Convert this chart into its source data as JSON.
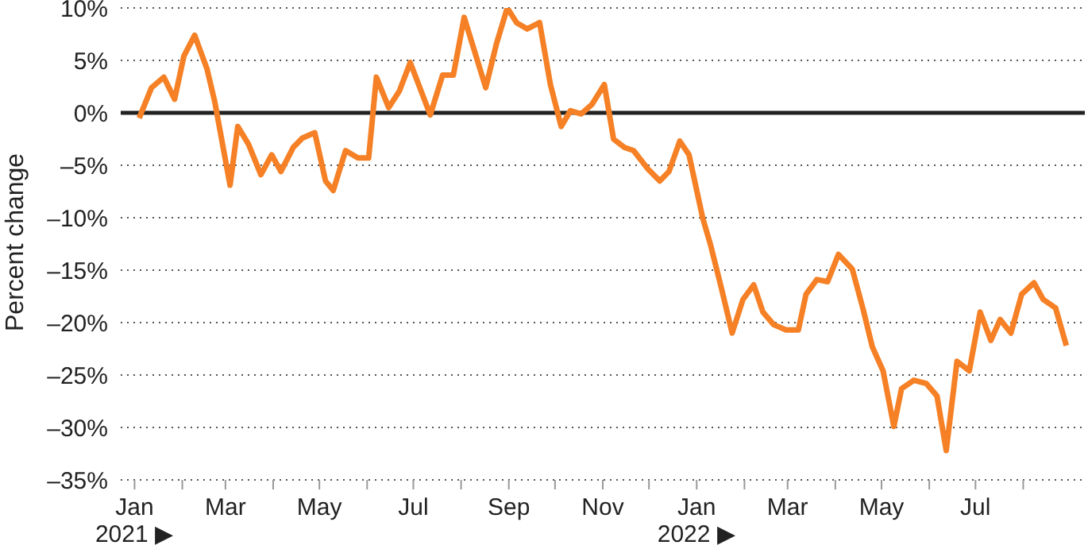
{
  "chart_data": {
    "type": "line",
    "ylabel": "Percent change",
    "x": [
      "2021-01-04",
      "2021-01-12",
      "2021-01-20",
      "2021-01-27",
      "2021-02-02",
      "2021-02-09",
      "2021-02-17",
      "2021-02-22",
      "2021-03-04",
      "2021-03-09",
      "2021-03-16",
      "2021-03-24",
      "2021-03-31",
      "2021-04-06",
      "2021-04-14",
      "2021-04-20",
      "2021-04-28",
      "2021-05-05",
      "2021-05-10",
      "2021-05-18",
      "2021-05-26",
      "2021-06-02",
      "2021-06-07",
      "2021-06-15",
      "2021-06-22",
      "2021-06-29",
      "2021-07-12",
      "2021-07-20",
      "2021-07-27",
      "2021-08-03",
      "2021-08-17",
      "2021-08-24",
      "2021-08-31",
      "2021-09-06",
      "2021-09-13",
      "2021-09-21",
      "2021-09-28",
      "2021-10-05",
      "2021-10-11",
      "2021-10-18",
      "2021-10-25",
      "2021-11-02",
      "2021-11-08",
      "2021-11-15",
      "2021-11-21",
      "2021-11-30",
      "2021-12-08",
      "2021-12-14",
      "2021-12-21",
      "2021-12-27",
      "2022-01-05",
      "2022-01-10",
      "2022-01-17",
      "2022-01-24",
      "2022-01-31",
      "2022-02-07",
      "2022-02-13",
      "2022-02-20",
      "2022-02-28",
      "2022-03-08",
      "2022-03-13",
      "2022-03-20",
      "2022-03-27",
      "2022-04-03",
      "2022-04-12",
      "2022-04-19",
      "2022-04-25",
      "2022-05-02",
      "2022-05-09",
      "2022-05-14",
      "2022-05-22",
      "2022-05-30",
      "2022-06-06",
      "2022-06-12",
      "2022-06-19",
      "2022-06-27",
      "2022-07-04",
      "2022-07-11",
      "2022-07-17",
      "2022-07-24",
      "2022-07-31",
      "2022-08-08",
      "2022-08-14",
      "2022-08-22",
      "2022-08-29"
    ],
    "series": [
      {
        "color": "#f58025",
        "values": [
          -0.5,
          2.4,
          3.4,
          1.3,
          5.4,
          7.4,
          4.2,
          1.1,
          -6.9,
          -1.3,
          -3.0,
          -5.9,
          -4.0,
          -5.6,
          -3.3,
          -2.4,
          -1.9,
          -6.5,
          -7.4,
          -3.6,
          -4.3,
          -4.3,
          3.4,
          0.5,
          2.1,
          4.8,
          -0.2,
          3.6,
          3.6,
          9.1,
          2.4,
          6.6,
          10.0,
          8.6,
          8.0,
          8.6,
          2.7,
          -1.3,
          0.2,
          -0.1,
          0.8,
          2.7,
          -2.5,
          -3.3,
          -3.6,
          -5.3,
          -6.5,
          -5.6,
          -2.7,
          -4.0,
          -10.1,
          -12.6,
          -16.7,
          -21.0,
          -17.8,
          -16.4,
          -19.0,
          -20.2,
          -20.7,
          -20.7,
          -17.3,
          -15.9,
          -16.1,
          -13.5,
          -14.9,
          -18.7,
          -22.3,
          -24.6,
          -29.9,
          -26.3,
          -25.5,
          -25.8,
          -27.0,
          -32.2,
          -23.7,
          -24.6,
          -19.0,
          -21.7,
          -19.7,
          -21.0,
          -17.3,
          -16.2,
          -17.8,
          -18.6,
          -22.2
        ]
      }
    ],
    "xlim": [
      "2020-12-23",
      "2022-09-10"
    ],
    "xticks": [
      {
        "value": "2021-01-01",
        "label": "Jan\n2021 ▶"
      },
      {
        "value": "2021-02-01",
        "label": null
      },
      {
        "value": "2021-03-01",
        "label": "Mar"
      },
      {
        "value": "2021-04-01",
        "label": null
      },
      {
        "value": "2021-05-01",
        "label": "May"
      },
      {
        "value": "2021-06-01",
        "label": null
      },
      {
        "value": "2021-07-01",
        "label": "Jul"
      },
      {
        "value": "2021-08-01",
        "label": null
      },
      {
        "value": "2021-09-01",
        "label": "Sep"
      },
      {
        "value": "2021-10-01",
        "label": null
      },
      {
        "value": "2021-11-01",
        "label": "Nov"
      },
      {
        "value": "2021-12-01",
        "label": null
      },
      {
        "value": "2022-01-01",
        "label": "Jan\n2022 ▶"
      },
      {
        "value": "2022-02-01",
        "label": null
      },
      {
        "value": "2022-03-01",
        "label": "Mar"
      },
      {
        "value": "2022-04-01",
        "label": null
      },
      {
        "value": "2022-05-01",
        "label": "May"
      },
      {
        "value": "2022-06-01",
        "label": null
      },
      {
        "value": "2022-07-01",
        "label": "Jul"
      },
      {
        "value": "2022-08-01",
        "label": null
      }
    ],
    "ylim": [
      -35,
      10
    ],
    "yticks": [
      {
        "value": 10,
        "label": "10%"
      },
      {
        "value": 5,
        "label": "5%"
      },
      {
        "value": 0,
        "label": "0%"
      },
      {
        "value": -5,
        "label": "–5%"
      },
      {
        "value": -10,
        "label": "–10%"
      },
      {
        "value": -15,
        "label": "–15%"
      },
      {
        "value": -20,
        "label": "–20%"
      },
      {
        "value": -25,
        "label": "–25%"
      },
      {
        "value": -30,
        "label": "–30%"
      },
      {
        "value": -35,
        "label": "–35%"
      }
    ],
    "grid": "y",
    "marker": "none",
    "line_style": "solid",
    "legend": false,
    "ref_lines": [
      {
        "axis": "y",
        "value": 0,
        "color": "#222222"
      }
    ]
  }
}
